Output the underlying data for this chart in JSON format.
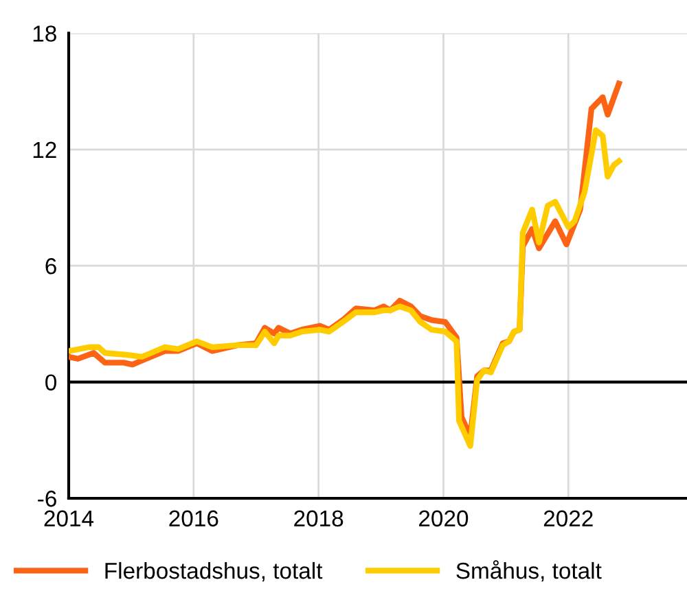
{
  "chart_data": {
    "type": "line",
    "series": [
      {
        "name": "Flerbostadshus, totalt",
        "color": "#fa6414",
        "x": [
          2014.0,
          2014.15,
          2014.4,
          2014.58,
          2014.88,
          2015.02,
          2015.24,
          2015.54,
          2015.75,
          2016.05,
          2016.3,
          2016.7,
          2017.0,
          2017.14,
          2017.29,
          2017.36,
          2017.55,
          2017.73,
          2018.02,
          2018.17,
          2018.39,
          2018.6,
          2018.9,
          2019.04,
          2019.15,
          2019.3,
          2019.48,
          2019.63,
          2019.81,
          2020.03,
          2020.21,
          2020.29,
          2020.43,
          2020.54,
          2020.65,
          2020.76,
          2020.95,
          2021.05,
          2021.13,
          2021.22,
          2021.27,
          2021.42,
          2021.53,
          2021.79,
          2021.97,
          2022.19,
          2022.37,
          2022.55,
          2022.63,
          2022.81
        ],
        "values": [
          1.3,
          1.2,
          1.5,
          1.0,
          1.0,
          0.9,
          1.2,
          1.6,
          1.6,
          2.0,
          1.6,
          1.9,
          2.0,
          2.8,
          2.5,
          2.8,
          2.5,
          2.7,
          2.9,
          2.7,
          3.2,
          3.8,
          3.7,
          3.9,
          3.7,
          4.2,
          3.9,
          3.4,
          3.2,
          3.1,
          2.3,
          -1.8,
          -2.8,
          0.3,
          0.6,
          0.6,
          2.0,
          2.1,
          2.6,
          2.7,
          7.0,
          7.9,
          6.9,
          8.3,
          7.1,
          8.9,
          14.1,
          14.7,
          13.8,
          15.4
        ]
      },
      {
        "name": "Småhus, totalt",
        "color": "#ffcc00",
        "x": [
          2014.0,
          2014.33,
          2014.48,
          2014.58,
          2014.95,
          2015.17,
          2015.32,
          2015.54,
          2015.75,
          2016.05,
          2016.3,
          2016.7,
          2017.0,
          2017.14,
          2017.29,
          2017.36,
          2017.55,
          2017.73,
          2018.02,
          2018.17,
          2018.39,
          2018.6,
          2018.9,
          2019.04,
          2019.15,
          2019.3,
          2019.48,
          2019.63,
          2019.81,
          2020.03,
          2020.21,
          2020.25,
          2020.43,
          2020.54,
          2020.65,
          2020.76,
          2020.95,
          2021.05,
          2021.13,
          2021.22,
          2021.27,
          2021.42,
          2021.53,
          2021.67,
          2021.79,
          2022.0,
          2022.1,
          2022.26,
          2022.44,
          2022.55,
          2022.63,
          2022.73,
          2022.81
        ],
        "values": [
          1.6,
          1.8,
          1.8,
          1.5,
          1.4,
          1.3,
          1.5,
          1.8,
          1.7,
          2.1,
          1.8,
          1.9,
          1.9,
          2.6,
          2.0,
          2.4,
          2.4,
          2.6,
          2.7,
          2.6,
          3.1,
          3.6,
          3.6,
          3.7,
          3.7,
          3.9,
          3.7,
          3.1,
          2.7,
          2.6,
          2.1,
          -2.0,
          -3.3,
          0.1,
          0.6,
          0.5,
          1.9,
          2.1,
          2.6,
          2.7,
          7.7,
          8.9,
          7.2,
          9.1,
          9.3,
          8.0,
          8.3,
          9.8,
          13.0,
          12.7,
          10.6,
          11.2,
          11.4
        ]
      }
    ],
    "xlim": [
      2014,
      2023.9
    ],
    "xticks": [
      2014,
      2016,
      2018,
      2020,
      2022
    ],
    "ylim": [
      -6,
      18
    ],
    "yticks": [
      -6,
      0,
      6,
      12,
      18
    ],
    "grid": true,
    "legend": "bottom",
    "line_style": "solid",
    "marker": "none",
    "ref_lines": [
      {
        "axis": "y",
        "value": 0,
        "color": "#000000"
      }
    ]
  }
}
